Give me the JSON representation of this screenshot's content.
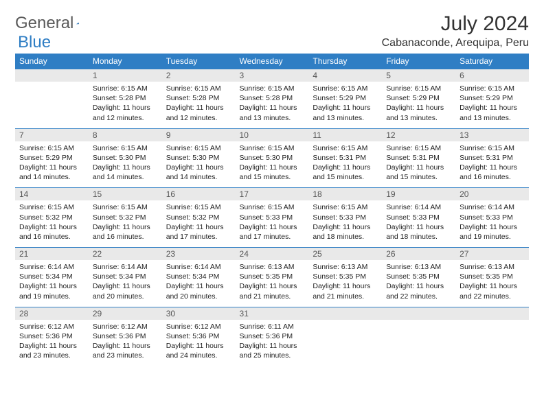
{
  "logo": {
    "part1": "General",
    "part2": "Blue"
  },
  "title": "July 2024",
  "location": "Cabanaconde, Arequipa, Peru",
  "colors": {
    "header_bg": "#2f7ec4",
    "header_text": "#ffffff",
    "daynum_bg": "#e9e9e9",
    "border": "#2f7ec4",
    "logo_gray": "#5a5a5a",
    "logo_blue": "#2f7ec4"
  },
  "weekdays": [
    "Sunday",
    "Monday",
    "Tuesday",
    "Wednesday",
    "Thursday",
    "Friday",
    "Saturday"
  ],
  "weeks": [
    [
      {
        "n": "",
        "sr": "",
        "ss": "",
        "dl": ""
      },
      {
        "n": "1",
        "sr": "Sunrise: 6:15 AM",
        "ss": "Sunset: 5:28 PM",
        "dl": "Daylight: 11 hours and 12 minutes."
      },
      {
        "n": "2",
        "sr": "Sunrise: 6:15 AM",
        "ss": "Sunset: 5:28 PM",
        "dl": "Daylight: 11 hours and 12 minutes."
      },
      {
        "n": "3",
        "sr": "Sunrise: 6:15 AM",
        "ss": "Sunset: 5:28 PM",
        "dl": "Daylight: 11 hours and 13 minutes."
      },
      {
        "n": "4",
        "sr": "Sunrise: 6:15 AM",
        "ss": "Sunset: 5:29 PM",
        "dl": "Daylight: 11 hours and 13 minutes."
      },
      {
        "n": "5",
        "sr": "Sunrise: 6:15 AM",
        "ss": "Sunset: 5:29 PM",
        "dl": "Daylight: 11 hours and 13 minutes."
      },
      {
        "n": "6",
        "sr": "Sunrise: 6:15 AM",
        "ss": "Sunset: 5:29 PM",
        "dl": "Daylight: 11 hours and 13 minutes."
      }
    ],
    [
      {
        "n": "7",
        "sr": "Sunrise: 6:15 AM",
        "ss": "Sunset: 5:29 PM",
        "dl": "Daylight: 11 hours and 14 minutes."
      },
      {
        "n": "8",
        "sr": "Sunrise: 6:15 AM",
        "ss": "Sunset: 5:30 PM",
        "dl": "Daylight: 11 hours and 14 minutes."
      },
      {
        "n": "9",
        "sr": "Sunrise: 6:15 AM",
        "ss": "Sunset: 5:30 PM",
        "dl": "Daylight: 11 hours and 14 minutes."
      },
      {
        "n": "10",
        "sr": "Sunrise: 6:15 AM",
        "ss": "Sunset: 5:30 PM",
        "dl": "Daylight: 11 hours and 15 minutes."
      },
      {
        "n": "11",
        "sr": "Sunrise: 6:15 AM",
        "ss": "Sunset: 5:31 PM",
        "dl": "Daylight: 11 hours and 15 minutes."
      },
      {
        "n": "12",
        "sr": "Sunrise: 6:15 AM",
        "ss": "Sunset: 5:31 PM",
        "dl": "Daylight: 11 hours and 15 minutes."
      },
      {
        "n": "13",
        "sr": "Sunrise: 6:15 AM",
        "ss": "Sunset: 5:31 PM",
        "dl": "Daylight: 11 hours and 16 minutes."
      }
    ],
    [
      {
        "n": "14",
        "sr": "Sunrise: 6:15 AM",
        "ss": "Sunset: 5:32 PM",
        "dl": "Daylight: 11 hours and 16 minutes."
      },
      {
        "n": "15",
        "sr": "Sunrise: 6:15 AM",
        "ss": "Sunset: 5:32 PM",
        "dl": "Daylight: 11 hours and 16 minutes."
      },
      {
        "n": "16",
        "sr": "Sunrise: 6:15 AM",
        "ss": "Sunset: 5:32 PM",
        "dl": "Daylight: 11 hours and 17 minutes."
      },
      {
        "n": "17",
        "sr": "Sunrise: 6:15 AM",
        "ss": "Sunset: 5:33 PM",
        "dl": "Daylight: 11 hours and 17 minutes."
      },
      {
        "n": "18",
        "sr": "Sunrise: 6:15 AM",
        "ss": "Sunset: 5:33 PM",
        "dl": "Daylight: 11 hours and 18 minutes."
      },
      {
        "n": "19",
        "sr": "Sunrise: 6:14 AM",
        "ss": "Sunset: 5:33 PM",
        "dl": "Daylight: 11 hours and 18 minutes."
      },
      {
        "n": "20",
        "sr": "Sunrise: 6:14 AM",
        "ss": "Sunset: 5:33 PM",
        "dl": "Daylight: 11 hours and 19 minutes."
      }
    ],
    [
      {
        "n": "21",
        "sr": "Sunrise: 6:14 AM",
        "ss": "Sunset: 5:34 PM",
        "dl": "Daylight: 11 hours and 19 minutes."
      },
      {
        "n": "22",
        "sr": "Sunrise: 6:14 AM",
        "ss": "Sunset: 5:34 PM",
        "dl": "Daylight: 11 hours and 20 minutes."
      },
      {
        "n": "23",
        "sr": "Sunrise: 6:14 AM",
        "ss": "Sunset: 5:34 PM",
        "dl": "Daylight: 11 hours and 20 minutes."
      },
      {
        "n": "24",
        "sr": "Sunrise: 6:13 AM",
        "ss": "Sunset: 5:35 PM",
        "dl": "Daylight: 11 hours and 21 minutes."
      },
      {
        "n": "25",
        "sr": "Sunrise: 6:13 AM",
        "ss": "Sunset: 5:35 PM",
        "dl": "Daylight: 11 hours and 21 minutes."
      },
      {
        "n": "26",
        "sr": "Sunrise: 6:13 AM",
        "ss": "Sunset: 5:35 PM",
        "dl": "Daylight: 11 hours and 22 minutes."
      },
      {
        "n": "27",
        "sr": "Sunrise: 6:13 AM",
        "ss": "Sunset: 5:35 PM",
        "dl": "Daylight: 11 hours and 22 minutes."
      }
    ],
    [
      {
        "n": "28",
        "sr": "Sunrise: 6:12 AM",
        "ss": "Sunset: 5:36 PM",
        "dl": "Daylight: 11 hours and 23 minutes."
      },
      {
        "n": "29",
        "sr": "Sunrise: 6:12 AM",
        "ss": "Sunset: 5:36 PM",
        "dl": "Daylight: 11 hours and 23 minutes."
      },
      {
        "n": "30",
        "sr": "Sunrise: 6:12 AM",
        "ss": "Sunset: 5:36 PM",
        "dl": "Daylight: 11 hours and 24 minutes."
      },
      {
        "n": "31",
        "sr": "Sunrise: 6:11 AM",
        "ss": "Sunset: 5:36 PM",
        "dl": "Daylight: 11 hours and 25 minutes."
      },
      {
        "n": "",
        "sr": "",
        "ss": "",
        "dl": ""
      },
      {
        "n": "",
        "sr": "",
        "ss": "",
        "dl": ""
      },
      {
        "n": "",
        "sr": "",
        "ss": "",
        "dl": ""
      }
    ]
  ]
}
